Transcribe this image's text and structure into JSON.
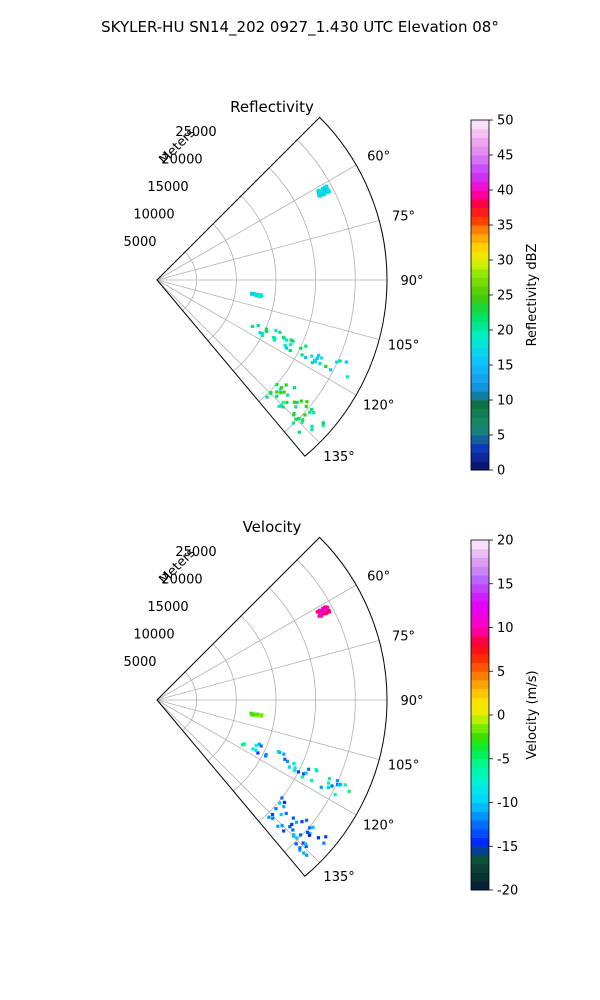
{
  "suptitle": "SKYLER-HU  SN14_202  0927_1.430 UTC Elevation 08°",
  "chart_data": [
    {
      "type": "heatmap",
      "title": "Reflectivity",
      "rlabel": "Meters",
      "rticks": [
        5000,
        10000,
        15000,
        20000,
        25000
      ],
      "rlim": [
        0,
        29000
      ],
      "theta_range_deg": [
        45,
        140
      ],
      "theta_ticks": [
        "60°",
        "75°",
        "90°",
        "105°",
        "120°",
        "135°"
      ],
      "grid": true,
      "colorbar": {
        "label": "Reflectivity dBZ",
        "min": 0,
        "max": 50,
        "ticks": [
          "0",
          "5",
          "10",
          "15",
          "20",
          "25",
          "30",
          "35",
          "40",
          "45",
          "50"
        ]
      },
      "echoes": [
        {
          "theta": [
            113,
            118
          ],
          "r": [
            12000,
            27000
          ],
          "value_range": [
            15,
            24
          ]
        },
        {
          "theta": [
            128,
            137
          ],
          "r": [
            20000,
            28000
          ],
          "value_range": [
            18,
            25
          ]
        },
        {
          "theta": [
            98,
            99
          ],
          "r": [
            12000,
            13500
          ],
          "value_range": [
            15,
            20
          ]
        },
        {
          "theta": [
            61,
            63
          ],
          "r": [
            23000,
            24500
          ],
          "value_range": [
            15,
            20
          ]
        }
      ]
    },
    {
      "type": "heatmap",
      "title": "Velocity",
      "rlabel": "Meters",
      "rticks": [
        5000,
        10000,
        15000,
        20000,
        25000
      ],
      "rlim": [
        0,
        29000
      ],
      "theta_range_deg": [
        45,
        140
      ],
      "theta_ticks": [
        "60°",
        "75°",
        "90°",
        "105°",
        "120°",
        "135°"
      ],
      "grid": true,
      "colorbar": {
        "label": "Velocity (m/s)",
        "min": -20,
        "max": 20,
        "ticks": [
          "-20",
          "-15",
          "-10",
          "-5",
          "0",
          "5",
          "10",
          "15",
          "20"
        ]
      },
      "echoes": [
        {
          "theta": [
            113,
            118
          ],
          "r": [
            12000,
            27000
          ],
          "value_range": [
            -14,
            -5
          ]
        },
        {
          "theta": [
            128,
            137
          ],
          "r": [
            20000,
            28000
          ],
          "value_range": [
            -15,
            -10
          ]
        },
        {
          "theta": [
            98,
            99
          ],
          "r": [
            12000,
            13500
          ],
          "value_range": [
            -3,
            0
          ]
        },
        {
          "theta": [
            61,
            63
          ],
          "r": [
            23000,
            24500
          ],
          "value_range": [
            8,
            12
          ]
        }
      ]
    }
  ]
}
